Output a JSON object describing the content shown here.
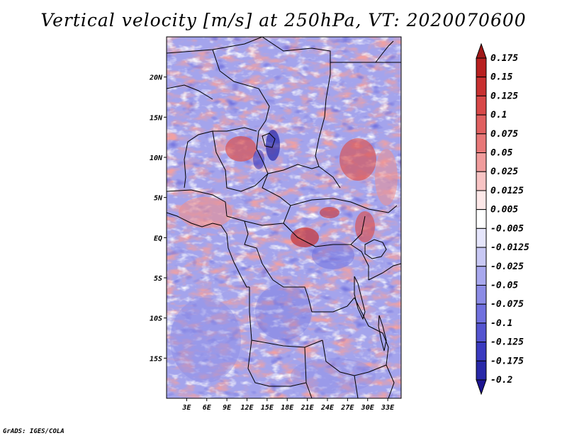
{
  "title": "Vertical velocity [m/s] at 250hPa, VT: 2020070600",
  "credit": "GrADS: IGES/COLA",
  "map": {
    "lat_labels": [
      "20N",
      "15N",
      "10N",
      "5N",
      "EQ",
      "5S",
      "10S",
      "15S"
    ],
    "lat_values": [
      20,
      15,
      10,
      5,
      0,
      -5,
      -10,
      -15
    ],
    "lon_labels": [
      "3E",
      "6E",
      "9E",
      "12E",
      "15E",
      "18E",
      "21E",
      "24E",
      "27E",
      "30E",
      "33E"
    ],
    "lon_values": [
      3,
      6,
      9,
      12,
      15,
      18,
      21,
      24,
      27,
      30,
      33
    ],
    "lat_range": [
      -20,
      25
    ],
    "lon_range": [
      0,
      35
    ]
  },
  "colorbar": {
    "labels": [
      "0.175",
      "0.15",
      "0.125",
      "0.1",
      "0.075",
      "0.05",
      "0.025",
      "0.0125",
      "0.005",
      "-0.005",
      "-0.0125",
      "-0.025",
      "-0.05",
      "-0.075",
      "-0.1",
      "-0.125",
      "-0.175",
      "-0.2"
    ],
    "colors": [
      "#a01818",
      "#b82020",
      "#c83030",
      "#d84848",
      "#e06060",
      "#e87878",
      "#f09c9c",
      "#f8c4c4",
      "#fde8e8",
      "#ffffff",
      "#e6e6fc",
      "#c8c8f4",
      "#a8a8ee",
      "#8c8ce6",
      "#7070de",
      "#5454d0",
      "#3a3ac0",
      "#2828a8",
      "#1c1490"
    ]
  },
  "colors": {
    "positive_accent": "#c83030",
    "negative_accent": "#3a3ac0",
    "background": "#ffffff"
  }
}
